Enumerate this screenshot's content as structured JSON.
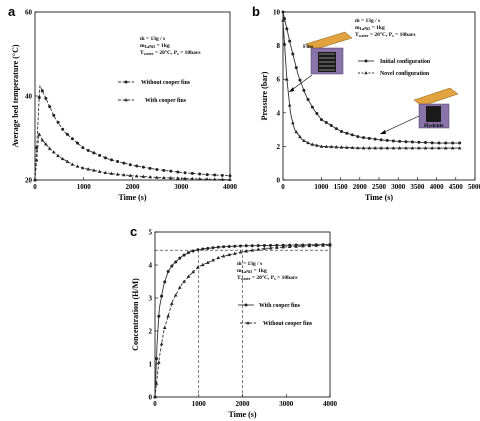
{
  "colors": {
    "line": "#333333",
    "marker": "#222222",
    "inset_lid": "#e0a340",
    "inset_body": "#8a73a8",
    "inset_core": "#1a1a1a"
  },
  "chart_data": [
    {
      "panel": "a",
      "type": "line",
      "xlabel": "Time (s)",
      "ylabel": "Average bed temperature (°C)",
      "xlim": [
        0,
        4000
      ],
      "ylim": [
        20,
        60
      ],
      "xticks": [
        0,
        1000,
        2000,
        3000,
        4000
      ],
      "yticks": [
        20,
        40,
        60
      ],
      "annotation": [
        "ṁ = 13g / s",
        "m_LaNi5 = 1kg",
        "T_water = 20°C, P_s = 10bars"
      ],
      "series": [
        {
          "name": "Without cooper fins",
          "marker": "circle",
          "dash": true,
          "x": [
            0,
            100,
            200,
            400,
            600,
            800,
            1000,
            1500,
            2000,
            2500,
            3000,
            3500,
            4000
          ],
          "y": [
            20,
            42.5,
            40,
            35,
            31.5,
            29.5,
            27.5,
            25,
            23.5,
            22.5,
            21.8,
            21.3,
            21
          ]
        },
        {
          "name": "With cooper fins",
          "marker": "triangle",
          "dash": true,
          "x": [
            0,
            80,
            150,
            300,
            500,
            800,
            1000,
            1500,
            2000,
            2500,
            3000,
            3500,
            4000
          ],
          "y": [
            20,
            31,
            29.5,
            27.5,
            25.5,
            23.5,
            22.8,
            21.6,
            21,
            20.6,
            20.4,
            20.2,
            20.1
          ]
        }
      ]
    },
    {
      "panel": "b",
      "type": "line",
      "xlabel": "Time (s)",
      "ylabel": "Pressure (bar)",
      "xlim": [
        0,
        5000
      ],
      "ylim": [
        0,
        10
      ],
      "xticks": [
        0,
        1000,
        1500,
        2000,
        2500,
        3000,
        3500,
        4000,
        4500,
        5000
      ],
      "yticks": [
        0,
        2,
        4,
        6,
        8,
        10
      ],
      "annotation": [
        "ṁ = 13g / s",
        "m_LaNi5 = 1kg",
        "T_water = 20°C, P_s = 10bars"
      ],
      "series": [
        {
          "name": "Initial configuration",
          "marker": "circle",
          "dash": false,
          "x": [
            0,
            100,
            200,
            400,
            600,
            800,
            1000,
            1500,
            2000,
            2500,
            3000,
            3500,
            4000,
            4600
          ],
          "y": [
            10,
            9,
            8,
            6.2,
            5,
            4.2,
            3.6,
            2.9,
            2.55,
            2.4,
            2.3,
            2.25,
            2.2,
            2.2
          ]
        },
        {
          "name": "Novel configuration",
          "marker": "triangle",
          "dash": false,
          "x": [
            0,
            100,
            200,
            300,
            500,
            700,
            1000,
            1500,
            2000,
            3000,
            4000,
            4600
          ],
          "y": [
            9.5,
            6,
            3.9,
            3,
            2.4,
            2.15,
            2,
            1.95,
            1.9,
            1.9,
            1.9,
            1.9
          ]
        }
      ],
      "inset_labels": [
        "Fins",
        "Hydride"
      ]
    },
    {
      "panel": "c",
      "type": "line",
      "xlabel": "Time (s)",
      "ylabel": "Concentration (H/M)",
      "xlim": [
        0,
        4000
      ],
      "ylim": [
        0,
        5
      ],
      "xticks": [
        0,
        1000,
        2000,
        3000,
        4000
      ],
      "yticks": [
        0,
        1,
        2,
        3,
        4,
        5
      ],
      "annotation": [
        "ṁ = 13g / s",
        "m_LaNi5 = 1kg",
        "T_water = 20°C, P_s = 10bars"
      ],
      "series": [
        {
          "name": "With cooper fins",
          "marker": "circle",
          "dash": false,
          "x": [
            0,
            50,
            100,
            200,
            300,
            400,
            600,
            800,
            1000,
            1500,
            2000,
            3000,
            4000
          ],
          "y": [
            0,
            1.7,
            2.7,
            3.4,
            3.8,
            4.0,
            4.25,
            4.4,
            4.47,
            4.55,
            4.58,
            4.6,
            4.62
          ]
        },
        {
          "name": "Without cooper fins",
          "marker": "triangle",
          "dash": true,
          "x": [
            0,
            100,
            200,
            400,
            600,
            800,
            1000,
            1500,
            2000,
            2500,
            3000,
            3500,
            4000
          ],
          "y": [
            0,
            1.2,
            2.0,
            2.9,
            3.4,
            3.7,
            3.95,
            4.25,
            4.4,
            4.5,
            4.55,
            4.58,
            4.6
          ]
        }
      ],
      "reference_lines": {
        "y": 4.45,
        "x": [
          1000,
          2000
        ]
      }
    }
  ]
}
